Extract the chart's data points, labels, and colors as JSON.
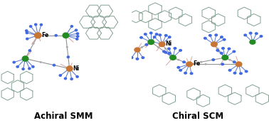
{
  "title_left": "Achiral SMM",
  "title_right": "Chiral SCM",
  "bg_color": "#ffffff",
  "title_fontsize": 8.5,
  "title_fontweight": "bold",
  "fig_width": 3.78,
  "fig_height": 1.73,
  "dpi": 100,
  "fe_color": "#C87533",
  "ni_color": "#228B22",
  "n_color": "#4169E1",
  "bond_color_gray": "#909090",
  "bond_color_blue": "#5578CC",
  "bond_color_pink": "#D4A0A0",
  "ring_color": "#7A9A8A",
  "ring_lw": 0.65,
  "label_fe": "Fe",
  "label_ni": "Ni"
}
